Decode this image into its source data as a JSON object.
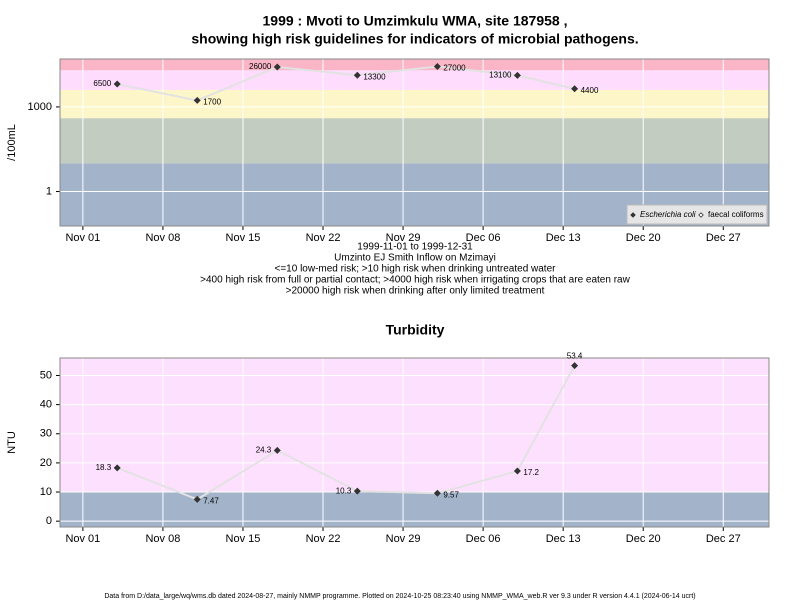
{
  "chart_data": [
    {
      "type": "line",
      "title": [
        "1999 : Mvoti to Umzimkulu WMA, site 187958 ,",
        "showing high risk guidelines for indicators of microbial pathogens."
      ],
      "ylabel": "/100mL",
      "notes": [
        "1999-11-01 to 1999-12-31",
        "Umzinto EJ Smith Inflow on Mzimayi",
        "<=10 low-med risk; >10 high risk when drinking untreated water",
        ">400 high risk from full or partial contact; >4000 high risk when irrigating crops that are eaten raw",
        ">20000 high risk when drinking after only limited treatment"
      ],
      "x": [
        "1999-11-04",
        "1999-11-11",
        "1999-11-18",
        "1999-11-25",
        "1999-12-02",
        "1999-12-09",
        "1999-12-14"
      ],
      "series": [
        {
          "name": "Escherichia coli",
          "color": "#333333",
          "line_color": "#e2e2e2",
          "values": [
            6500,
            1700,
            26000,
            13300,
            27000,
            13100,
            4400
          ]
        },
        {
          "name": "faecal coliforms",
          "color": "#333333",
          "line_color": "#e2e2e2",
          "values": [
            null,
            null,
            null,
            null,
            null,
            null,
            null
          ]
        }
      ],
      "xlim": [
        "1999-10-30",
        "1999-12-31"
      ],
      "xticks": [
        {
          "value": "1999-11-01",
          "label": "Nov 01"
        },
        {
          "value": "1999-11-08",
          "label": "Nov 08"
        },
        {
          "value": "1999-11-15",
          "label": "Nov 15"
        },
        {
          "value": "1999-11-22",
          "label": "Nov 22"
        },
        {
          "value": "1999-11-29",
          "label": "Nov 29"
        },
        {
          "value": "1999-12-06",
          "label": "Dec 06"
        },
        {
          "value": "1999-12-13",
          "label": "Dec 13"
        },
        {
          "value": "1999-12-20",
          "label": "Dec 20"
        },
        {
          "value": "1999-12-27",
          "label": "Dec 27"
        }
      ],
      "ylim": [
        0.06,
        50000
      ],
      "yticks": [
        1,
        1000
      ],
      "log": true,
      "grid": true,
      "legend": "lower right",
      "bands": [
        {
          "from": 0.06,
          "to": 10,
          "color": "#a3b4ca"
        },
        {
          "from": 10,
          "to": 400,
          "color": "#c3ccc1"
        },
        {
          "from": 400,
          "to": 4000,
          "color": "#fdf6c8"
        },
        {
          "from": 4000,
          "to": 20000,
          "color": "#fddcfd"
        },
        {
          "from": 20000,
          "to": 50000,
          "color": "#fab6c6"
        }
      ]
    },
    {
      "type": "line",
      "title": [
        "Turbidity"
      ],
      "ylabel": "NTU",
      "x": [
        "1999-11-04",
        "1999-11-11",
        "1999-11-18",
        "1999-11-25",
        "1999-12-02",
        "1999-12-09",
        "1999-12-14"
      ],
      "series": [
        {
          "name": "Turbidity",
          "color": "#333333",
          "line_color": "#e2e2e2",
          "values": [
            18.3,
            7.47,
            24.3,
            10.3,
            9.57,
            17.2,
            53.4
          ]
        }
      ],
      "xlim": [
        "1999-10-30",
        "1999-12-31"
      ],
      "xticks": [
        {
          "value": "1999-11-01",
          "label": "Nov 01"
        },
        {
          "value": "1999-11-08",
          "label": "Nov 08"
        },
        {
          "value": "1999-11-15",
          "label": "Nov 15"
        },
        {
          "value": "1999-11-22",
          "label": "Nov 22"
        },
        {
          "value": "1999-11-29",
          "label": "Nov 29"
        },
        {
          "value": "1999-12-06",
          "label": "Dec 06"
        },
        {
          "value": "1999-12-13",
          "label": "Dec 13"
        },
        {
          "value": "1999-12-20",
          "label": "Dec 20"
        },
        {
          "value": "1999-12-27",
          "label": "Dec 27"
        }
      ],
      "ylim": [
        -2,
        56
      ],
      "yticks": [
        0,
        10,
        20,
        30,
        40,
        50
      ],
      "log": false,
      "grid": true,
      "bands": [
        {
          "from": -2,
          "to": 10,
          "color": "#a3b4ca"
        },
        {
          "from": 10,
          "to": 56,
          "color": "#fde0fd"
        }
      ]
    }
  ],
  "footer": "Data from D:/data_large/wq/wms.db dated 2024-08-27, mainly NMMP programme. Plotted on 2024-10-25 08:23:40 using NMMP_WMA_web.R ver 9.3 under R version 4.4.1 (2024-06-14 ucrt)"
}
